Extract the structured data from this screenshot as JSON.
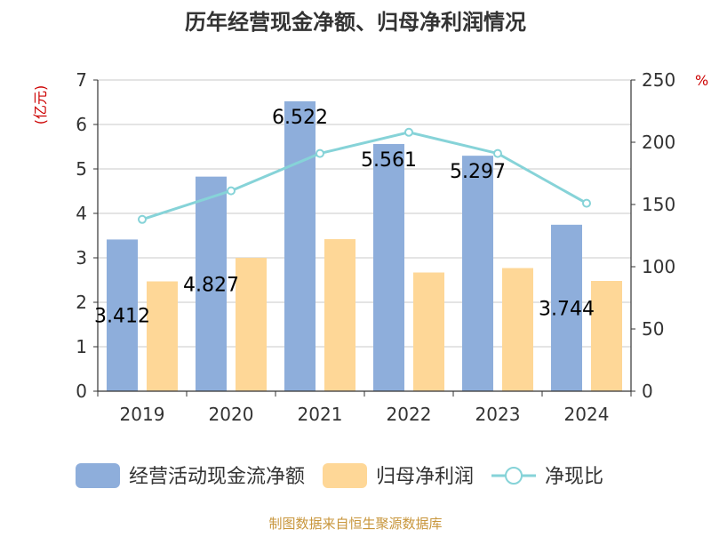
{
  "chart_data": {
    "type": "bar",
    "title": "历年经营现金净额、归母净利润情况",
    "left_axis_unit": "(亿元)",
    "right_axis_unit": "%",
    "categories": [
      "2019",
      "2020",
      "2021",
      "2022",
      "2023",
      "2024"
    ],
    "left_axis": {
      "min": 0,
      "max": 7,
      "ticks": [
        0,
        1,
        2,
        3,
        4,
        5,
        6,
        7
      ]
    },
    "right_axis": {
      "min": 0,
      "max": 250,
      "ticks": [
        0,
        50,
        100,
        150,
        200,
        250
      ]
    },
    "series": [
      {
        "name": "经营活动现金流净额",
        "type": "bar",
        "axis": "left",
        "values": [
          3.412,
          4.827,
          6.522,
          5.561,
          5.297,
          3.744
        ],
        "labels": [
          "3.412",
          "4.827",
          "6.522",
          "5.561",
          "5.297",
          "3.744"
        ],
        "color": "#8eaedb"
      },
      {
        "name": "归母净利润",
        "type": "bar",
        "axis": "left",
        "values": [
          2.47,
          3.0,
          3.42,
          2.67,
          2.77,
          2.48
        ],
        "color": "#fed797"
      },
      {
        "name": "净现比",
        "type": "line",
        "axis": "right",
        "values": [
          138,
          161,
          191,
          208,
          191,
          151
        ],
        "color": "#86d3d8"
      }
    ],
    "grid": true,
    "legend_position": "bottom"
  },
  "footer": {
    "source": "制图数据来自恒生聚源数据库",
    "color": "#c8963c"
  }
}
